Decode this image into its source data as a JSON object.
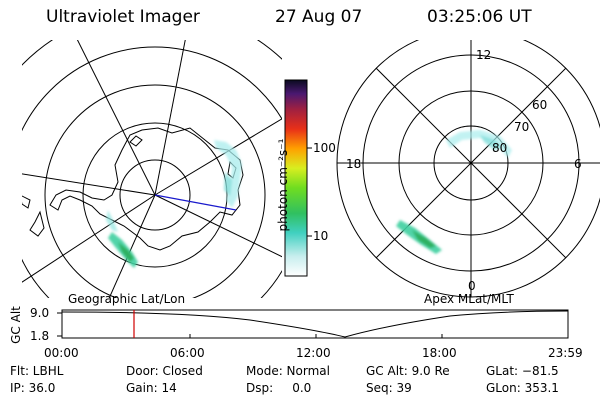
{
  "header": {
    "instrument": "Ultraviolet Imager",
    "date": "27 Aug 07",
    "time": "03:25:06 UT"
  },
  "colorbar": {
    "unit_label": "photon cm⁻²s⁻¹",
    "tick_labels": [
      "100",
      "10"
    ]
  },
  "left_map": {
    "label": "Geographic Lat/Lon"
  },
  "right_map": {
    "label": "Apex MLat/MLT",
    "mlt_labels": [
      "12",
      "18",
      "6",
      "0"
    ],
    "lat_labels": [
      "60",
      "70",
      "80"
    ]
  },
  "altitude_plot": {
    "ylabel": "GC Alt",
    "y_ticks": [
      "9.0",
      "1.8"
    ],
    "x_ticks": [
      "00:00",
      "06:00",
      "12:00",
      "18:00",
      "23:59"
    ],
    "marker_color": "#d00000"
  },
  "info": {
    "filter": "Flt: LBHL",
    "ip": "IP: 36.0",
    "door": "Door: Closed",
    "gain": "Gain: 14",
    "mode": "Mode: Normal",
    "dsp": "Dsp:     0.0",
    "gc_alt": "GC Alt: 9.0 Re",
    "seq": "Seq: 39",
    "glat": "GLat: −81.5",
    "glon": "GLon: 353.1"
  }
}
